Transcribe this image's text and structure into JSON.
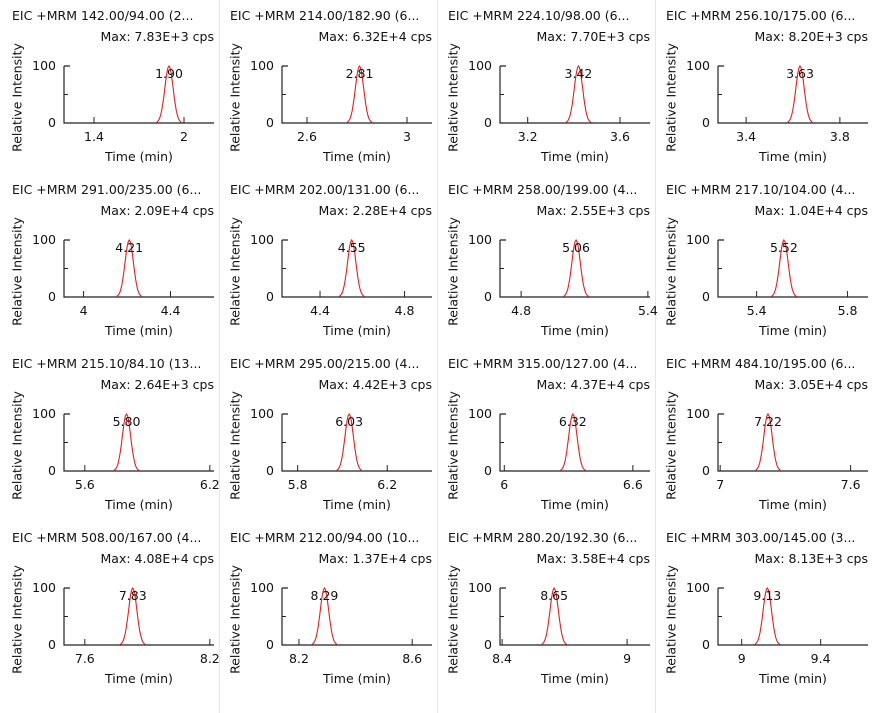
{
  "common": {
    "ylabel": "Relative Intensity",
    "xlabel": "Time (min)",
    "line_color": "#e02020"
  },
  "chart_data": [
    {
      "type": "line",
      "title": "EIC +MRM 142.00/94.00 (2...",
      "max_label": "Max: 7.83E+3 cps",
      "xlim": [
        1.2,
        2.2
      ],
      "xticks": [
        "1.4",
        "2"
      ],
      "ylim": [
        0,
        100
      ],
      "yticks": [
        "0",
        "100"
      ],
      "peak_rt": 1.9,
      "peak_label": "1.90"
    },
    {
      "type": "line",
      "title": "EIC +MRM 214.00/182.90 (6...",
      "max_label": "Max: 6.32E+4 cps",
      "xlim": [
        2.5,
        3.1
      ],
      "xticks": [
        "2.6",
        "3"
      ],
      "ylim": [
        0,
        100
      ],
      "yticks": [
        "0",
        "100"
      ],
      "peak_rt": 2.81,
      "peak_label": "2.81"
    },
    {
      "type": "line",
      "title": "EIC +MRM 224.10/98.00 (6...",
      "max_label": "Max: 7.70E+3 cps",
      "xlim": [
        3.08,
        3.73
      ],
      "xticks": [
        "3.2",
        "3.6"
      ],
      "ylim": [
        0,
        100
      ],
      "yticks": [
        "0",
        "100"
      ],
      "peak_rt": 3.42,
      "peak_label": "3.42"
    },
    {
      "type": "line",
      "title": "EIC +MRM 256.10/175.00 (6...",
      "max_label": "Max: 8.20E+3 cps",
      "xlim": [
        3.28,
        3.92
      ],
      "xticks": [
        "3.4",
        "3.8"
      ],
      "ylim": [
        0,
        100
      ],
      "yticks": [
        "0",
        "100"
      ],
      "peak_rt": 3.63,
      "peak_label": "3.63"
    },
    {
      "type": "line",
      "title": "EIC +MRM 291.00/235.00 (6...",
      "max_label": "Max: 2.09E+4 cps",
      "xlim": [
        3.91,
        4.6
      ],
      "xticks": [
        "4",
        "4.4"
      ],
      "ylim": [
        0,
        100
      ],
      "yticks": [
        "0",
        "100"
      ],
      "peak_rt": 4.21,
      "peak_label": "4.21"
    },
    {
      "type": "line",
      "title": "EIC +MRM 202.00/131.00 (6...",
      "max_label": "Max: 2.28E+4 cps",
      "xlim": [
        4.22,
        4.93
      ],
      "xticks": [
        "4.4",
        "4.8"
      ],
      "ylim": [
        0,
        100
      ],
      "yticks": [
        "0",
        "100"
      ],
      "peak_rt": 4.55,
      "peak_label": "4.55"
    },
    {
      "type": "line",
      "title": "EIC +MRM 258.00/199.00 (4...",
      "max_label": "Max: 2.55E+3 cps",
      "xlim": [
        4.7,
        5.41
      ],
      "xticks": [
        "4.8",
        "5.4"
      ],
      "ylim": [
        0,
        100
      ],
      "yticks": [
        "0",
        "100"
      ],
      "peak_rt": 5.06,
      "peak_label": "5.06"
    },
    {
      "type": "line",
      "title": "EIC +MRM 217.10/104.00 (4...",
      "max_label": "Max: 1.04E+4 cps",
      "xlim": [
        5.23,
        5.89
      ],
      "xticks": [
        "5.4",
        "5.8"
      ],
      "ylim": [
        0,
        100
      ],
      "yticks": [
        "0",
        "100"
      ],
      "peak_rt": 5.52,
      "peak_label": "5.52"
    },
    {
      "type": "line",
      "title": "EIC +MRM 215.10/84.10 (13...",
      "max_label": "Max: 2.64E+3 cps",
      "xlim": [
        5.5,
        6.22
      ],
      "xticks": [
        "5.6",
        "6.2"
      ],
      "ylim": [
        0,
        100
      ],
      "yticks": [
        "0",
        "100"
      ],
      "peak_rt": 5.8,
      "peak_label": "5.80"
    },
    {
      "type": "line",
      "title": "EIC +MRM 295.00/215.00 (4...",
      "max_label": "Max: 4.42E+3 cps",
      "xlim": [
        5.73,
        6.4
      ],
      "xticks": [
        "5.8",
        "6.2"
      ],
      "ylim": [
        0,
        100
      ],
      "yticks": [
        "0",
        "100"
      ],
      "peak_rt": 6.03,
      "peak_label": "6.03"
    },
    {
      "type": "line",
      "title": "EIC +MRM 315.00/127.00 (4...",
      "max_label": "Max: 4.37E+4 cps",
      "xlim": [
        5.98,
        6.68
      ],
      "xticks": [
        "6",
        "6.6"
      ],
      "ylim": [
        0,
        100
      ],
      "yticks": [
        "0",
        "100"
      ],
      "peak_rt": 6.32,
      "peak_label": "6.32"
    },
    {
      "type": "line",
      "title": "EIC +MRM 484.10/195.00 (6...",
      "max_label": "Max: 3.05E+4 cps",
      "xlim": [
        6.99,
        7.68
      ],
      "xticks": [
        "7",
        "7.6"
      ],
      "ylim": [
        0,
        100
      ],
      "yticks": [
        "0",
        "100"
      ],
      "peak_rt": 7.22,
      "peak_label": "7.22"
    },
    {
      "type": "line",
      "title": "EIC +MRM 508.00/167.00 (4...",
      "max_label": "Max: 4.08E+4 cps",
      "xlim": [
        7.5,
        8.22
      ],
      "xticks": [
        "7.6",
        "8.2"
      ],
      "ylim": [
        0,
        100
      ],
      "yticks": [
        "0",
        "100"
      ],
      "peak_rt": 7.83,
      "peak_label": "7.83"
    },
    {
      "type": "line",
      "title": "EIC +MRM 212.00/94.00 (10...",
      "max_label": "Max: 1.37E+4 cps",
      "xlim": [
        8.14,
        8.67
      ],
      "xticks": [
        "8.2",
        "8.6"
      ],
      "ylim": [
        0,
        100
      ],
      "yticks": [
        "0",
        "100"
      ],
      "peak_rt": 8.29,
      "peak_label": "8.29"
    },
    {
      "type": "line",
      "title": "EIC +MRM 280.20/192.30 (6...",
      "max_label": "Max: 3.58E+4 cps",
      "xlim": [
        8.39,
        9.11
      ],
      "xticks": [
        "8.4",
        "9"
      ],
      "ylim": [
        0,
        100
      ],
      "yticks": [
        "0",
        "100"
      ],
      "peak_rt": 8.65,
      "peak_label": "8.65"
    },
    {
      "type": "line",
      "title": "EIC +MRM 303.00/145.00 (3...",
      "max_label": "Max: 8.13E+3 cps",
      "xlim": [
        8.88,
        9.64
      ],
      "xticks": [
        "9",
        "9.4"
      ],
      "ylim": [
        0,
        100
      ],
      "yticks": [
        "0",
        "100"
      ],
      "peak_rt": 9.13,
      "peak_label": "9.13"
    }
  ]
}
